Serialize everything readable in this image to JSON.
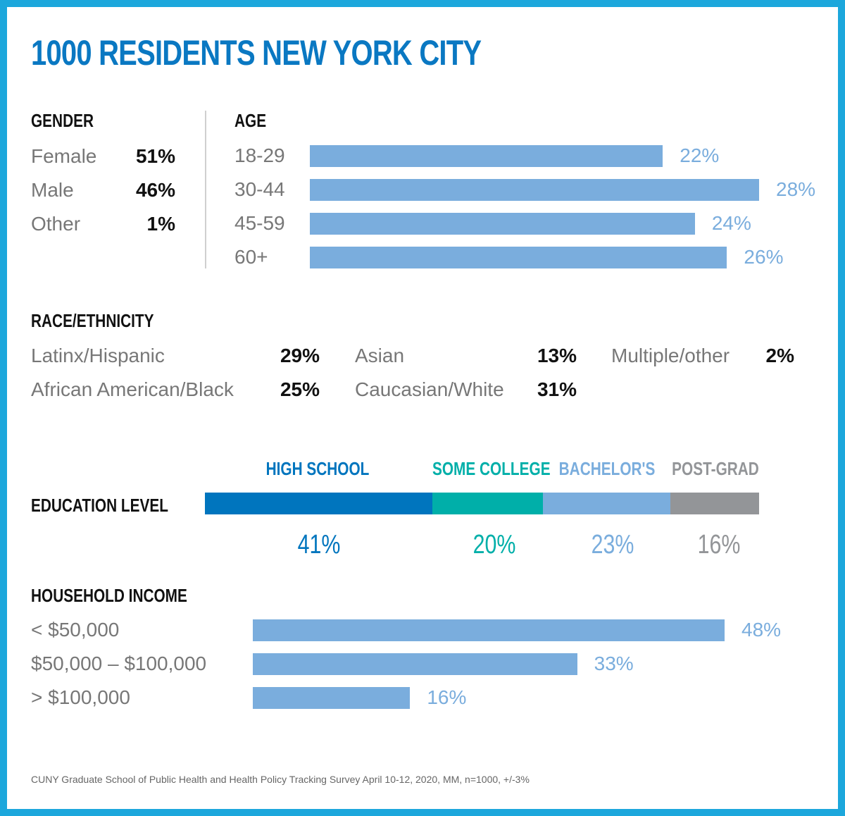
{
  "title": "1000 RESIDENTS NEW YORK CITY",
  "gender": {
    "heading": "GENDER",
    "rows": [
      {
        "label": "Female",
        "value": "51%"
      },
      {
        "label": "Male",
        "value": "46%"
      },
      {
        "label": "Other",
        "value": "1%"
      }
    ]
  },
  "race": {
    "heading": "RACE/ETHNICITY",
    "items": [
      {
        "label": "Latinx/Hispanic",
        "value": "29%"
      },
      {
        "label": "African American/Black",
        "value": "25%"
      },
      {
        "label": "Asian",
        "value": "13%"
      },
      {
        "label": "Caucasian/White",
        "value": "31%"
      },
      {
        "label": "Multiple/other",
        "value": "2%"
      }
    ]
  },
  "education": {
    "heading": "EDUCATION LEVEL"
  },
  "income": {
    "heading": "HOUSEHOLD INCOME"
  },
  "source": "CUNY Graduate School of Public Health and Health Policy Tracking Survey April 10-12, 2020, MM, n=1000, +/-3%",
  "colors": {
    "frame": "#1ca7dc",
    "title": "#0a78c2",
    "bar": "#7aaddd",
    "high_school": "#0075be",
    "some_college": "#00afa9",
    "bachelors": "#7aaddd",
    "post_grad": "#939598"
  },
  "chart_data": [
    {
      "type": "bar",
      "orientation": "horizontal",
      "title": "AGE",
      "categories": [
        "18-29",
        "30-44",
        "45-59",
        "60+"
      ],
      "values": [
        22,
        28,
        24,
        26
      ],
      "value_labels": [
        "22%",
        "28%",
        "24%",
        "26%"
      ],
      "unit": "%"
    },
    {
      "type": "bar",
      "orientation": "horizontal",
      "stacked": true,
      "title": "EDUCATION LEVEL",
      "categories": [
        "HIGH SCHOOL",
        "SOME COLLEGE",
        "BACHELOR'S",
        "POST-GRAD"
      ],
      "values": [
        41,
        20,
        23,
        16
      ],
      "value_labels": [
        "41%",
        "20%",
        "23%",
        "16%"
      ],
      "colors": [
        "#0075be",
        "#00afa9",
        "#7aaddd",
        "#939598"
      ],
      "unit": "%"
    },
    {
      "type": "bar",
      "orientation": "horizontal",
      "title": "HOUSEHOLD INCOME",
      "categories": [
        "< $50,000",
        "$50,000 – $100,000",
        "> $100,000"
      ],
      "values": [
        48,
        33,
        16
      ],
      "value_labels": [
        "48%",
        "33%",
        "16%"
      ],
      "unit": "%"
    }
  ]
}
